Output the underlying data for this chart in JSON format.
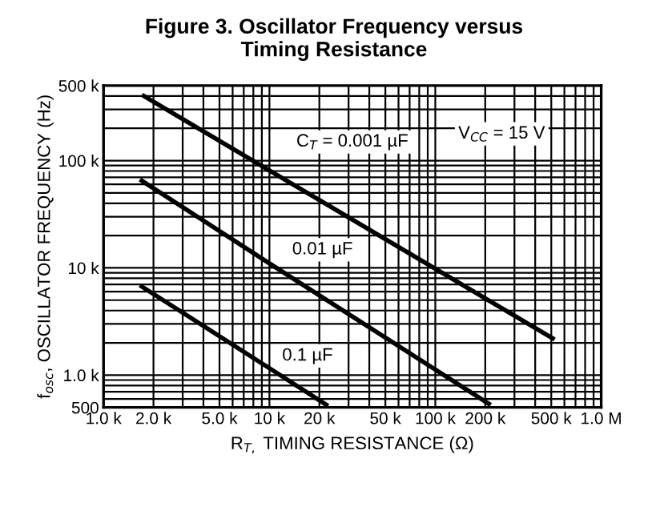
{
  "chart_data": {
    "type": "line",
    "title": "Figure 3. Oscillator Frequency versus\nTiming Resistance",
    "xlabel": "R$_{T,}$ TIMING RESISTANCE (Ω)",
    "ylabel": "f$_{osc}$, OSCILLATOR FREQUENCY (Hz)",
    "log": "xy",
    "grid": true,
    "marker": "none",
    "line_style": "solid",
    "legend": false,
    "xlim": [
      1000,
      1000000
    ],
    "ylim": [
      500,
      500000
    ],
    "xticks": [
      {
        "value": 1000,
        "label": "1.0 k"
      },
      {
        "value": 2000,
        "label": "2.0 k"
      },
      {
        "value": 3000,
        "label": null
      },
      {
        "value": 4000,
        "label": null
      },
      {
        "value": 5000,
        "label": "5.0 k"
      },
      {
        "value": 6000,
        "label": null
      },
      {
        "value": 7000,
        "label": null
      },
      {
        "value": 8000,
        "label": null
      },
      {
        "value": 9000,
        "label": null
      },
      {
        "value": 10000,
        "label": "10 k"
      },
      {
        "value": 20000,
        "label": "20 k"
      },
      {
        "value": 30000,
        "label": null
      },
      {
        "value": 40000,
        "label": null
      },
      {
        "value": 50000,
        "label": "50 k"
      },
      {
        "value": 60000,
        "label": null
      },
      {
        "value": 70000,
        "label": null
      },
      {
        "value": 80000,
        "label": null
      },
      {
        "value": 90000,
        "label": null
      },
      {
        "value": 100000,
        "label": "100 k"
      },
      {
        "value": 200000,
        "label": "200 k"
      },
      {
        "value": 300000,
        "label": null
      },
      {
        "value": 400000,
        "label": null
      },
      {
        "value": 500000,
        "label": "500 k"
      },
      {
        "value": 600000,
        "label": null
      },
      {
        "value": 700000,
        "label": null
      },
      {
        "value": 800000,
        "label": null
      },
      {
        "value": 900000,
        "label": null
      },
      {
        "value": 1000000,
        "label": "1.0 M"
      }
    ],
    "yticks": [
      500,
      {
        "value": 600,
        "label": null
      },
      {
        "value": 700,
        "label": null
      },
      {
        "value": 800,
        "label": null
      },
      {
        "value": 900,
        "label": null
      },
      {
        "value": 1000,
        "label": "1.0 k"
      },
      {
        "value": 2000,
        "label": null
      },
      {
        "value": 3000,
        "label": null
      },
      {
        "value": 4000,
        "label": null
      },
      {
        "value": 5000,
        "label": null
      },
      {
        "value": 6000,
        "label": null
      },
      {
        "value": 7000,
        "label": null
      },
      {
        "value": 8000,
        "label": null
      },
      {
        "value": 9000,
        "label": null
      },
      {
        "value": 10000,
        "label": "10 k"
      },
      {
        "value": 20000,
        "label": null
      },
      {
        "value": 30000,
        "label": null
      },
      {
        "value": 40000,
        "label": null
      },
      {
        "value": 50000,
        "label": null
      },
      {
        "value": 60000,
        "label": null
      },
      {
        "value": 70000,
        "label": null
      },
      {
        "value": 80000,
        "label": null
      },
      {
        "value": 90000,
        "label": null
      },
      {
        "value": 100000,
        "label": "100 k"
      },
      {
        "value": 200000,
        "label": null
      },
      {
        "value": 300000,
        "label": null
      },
      {
        "value": 400000,
        "label": null
      },
      {
        "value": 500000,
        "label": "500 k"
      }
    ],
    "series": [
      {
        "color": "#000000",
        "x": [
          1750,
          10000,
          510000
        ],
        "values": [
          400000,
          81000,
          2200
        ]
      },
      {
        "color": "#000000",
        "x": [
          1700,
          10000,
          210000
        ],
        "values": [
          65000,
          11000,
          540
        ]
      },
      {
        "color": "#000000",
        "x": [
          1700,
          10000,
          22000
        ],
        "values": [
          6700,
          1160,
          530
        ]
      }
    ],
    "annotations": [
      "C$_{T}$ = 0.001 µF",
      "0.01 µF",
      "0.1 µF",
      "V$_{CC}$ = 15 V"
    ]
  }
}
